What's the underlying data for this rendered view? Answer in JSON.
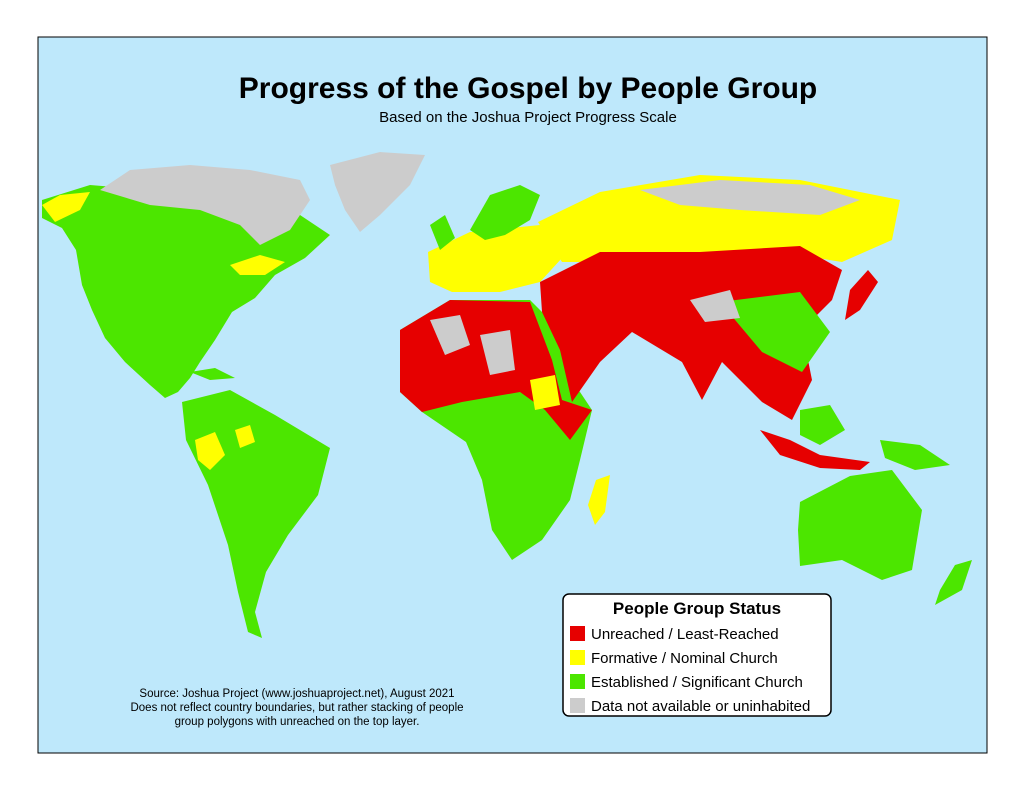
{
  "title": "Progress of the Gospel by People Group",
  "subtitle": "Based on the Joshua Project Progress Scale",
  "legend": {
    "title": "People Group Status",
    "items": [
      {
        "label": "Unreached / Least-Reached",
        "color": "#e60000"
      },
      {
        "label": "Formative / Nominal Church",
        "color": "#ffff00"
      },
      {
        "label": "Established / Significant Church",
        "color": "#4ce600"
      },
      {
        "label": "Data not available or uninhabited",
        "color": "#cccccc"
      }
    ]
  },
  "source": [
    "Source: Joshua Project (www.joshuaproject.net), August 2021",
    "Does not reflect country boundaries, but rather stacking of people",
    "group polygons with unreached on the top layer."
  ]
}
